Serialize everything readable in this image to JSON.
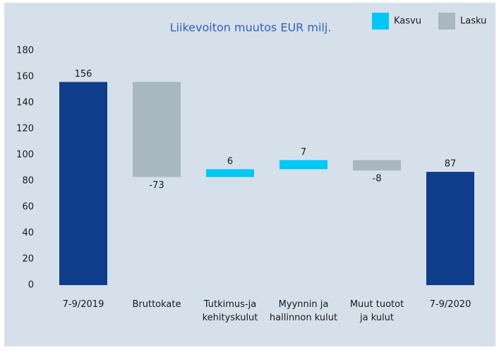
{
  "chart_data": {
    "type": "waterfall",
    "title": "Liikevoiton muutos EUR milj.",
    "categories": [
      [
        "7-9/2019"
      ],
      [
        "Bruttokate"
      ],
      [
        "Tutkimus-ja",
        "kehityskulut"
      ],
      [
        "Myynnin ja",
        "hallinnon kulut"
      ],
      [
        "Muut tuotot",
        "ja kulut"
      ],
      [
        "7-9/2020"
      ]
    ],
    "values": [
      156,
      -73,
      6,
      7,
      -8,
      87
    ],
    "measure": [
      "absolute",
      "relative",
      "relative",
      "relative",
      "relative",
      "absolute"
    ],
    "total_color": "#0f3d8c",
    "legend": [
      {
        "name": "Kasvu",
        "color": "#00c8f5"
      },
      {
        "name": "Lasku",
        "color": "#a9b8c0"
      }
    ],
    "ylim": [
      0,
      180
    ],
    "yticks": [
      0,
      20,
      40,
      60,
      80,
      100,
      120,
      140,
      160,
      180
    ],
    "grid": false
  }
}
